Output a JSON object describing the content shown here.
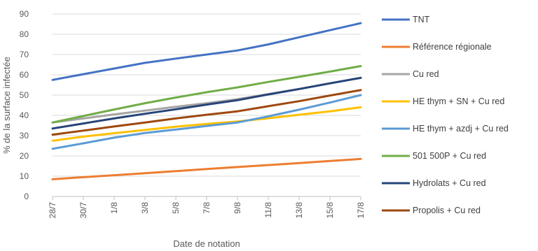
{
  "chart_data": {
    "type": "line",
    "title": "",
    "xlabel": "Date de notation",
    "ylabel": "% de la surface infectée",
    "x": [
      "28/7",
      "30/7",
      "1/8",
      "3/8",
      "5/8",
      "7/8",
      "9/8",
      "11/8",
      "13/8",
      "15/8",
      "17/8"
    ],
    "ylim": [
      0,
      90
    ],
    "yticks": [
      0,
      10,
      20,
      30,
      40,
      50,
      60,
      70,
      80,
      90
    ],
    "grid": true,
    "legend_position": "right",
    "series": [
      {
        "name": "TNT",
        "color": "#4472C4",
        "values": [
          57.5,
          60.3,
          63.1,
          65.9,
          68.0,
          70.0,
          72.0,
          75.0,
          78.5,
          82.0,
          85.5
        ]
      },
      {
        "name": "Référence régionale",
        "color": "#ED7D31",
        "values": [
          8.5,
          9.5,
          10.5,
          11.5,
          12.5,
          13.5,
          14.5,
          15.5,
          16.5,
          17.5,
          18.5
        ]
      },
      {
        "name": "Cu red",
        "color": "#A5A5A5",
        "values": [
          36.5,
          38.5,
          40.5,
          42.3,
          44.2,
          46.0,
          48.0,
          50.5,
          53.0,
          55.8,
          58.5
        ]
      },
      {
        "name": "HE thym + SN + Cu red",
        "color": "#FFC000",
        "values": [
          27.5,
          29.5,
          31.2,
          32.8,
          34.4,
          35.8,
          37.0,
          38.6,
          40.3,
          42.0,
          44.0
        ]
      },
      {
        "name": "HE thym + azdj + Cu red",
        "color": "#5B9BD5",
        "values": [
          23.5,
          26.2,
          29.0,
          31.3,
          33.0,
          34.8,
          36.5,
          39.5,
          42.8,
          46.3,
          50.0
        ]
      },
      {
        "name": "501 500P + Cu red",
        "color": "#70AD47",
        "values": [
          36.5,
          39.7,
          42.9,
          46.0,
          48.8,
          51.4,
          53.8,
          56.5,
          59.0,
          61.6,
          64.3
        ]
      },
      {
        "name": "Hydrolats + Cu red",
        "color": "#264478",
        "values": [
          33.5,
          36.0,
          38.5,
          40.8,
          43.0,
          45.3,
          47.5,
          50.3,
          53.0,
          55.8,
          58.5
        ]
      },
      {
        "name": "Propolis + Cu red",
        "color": "#9E480E",
        "values": [
          30.5,
          32.5,
          34.5,
          36.5,
          38.5,
          40.3,
          42.0,
          44.5,
          47.0,
          49.8,
          52.5
        ]
      }
    ]
  }
}
